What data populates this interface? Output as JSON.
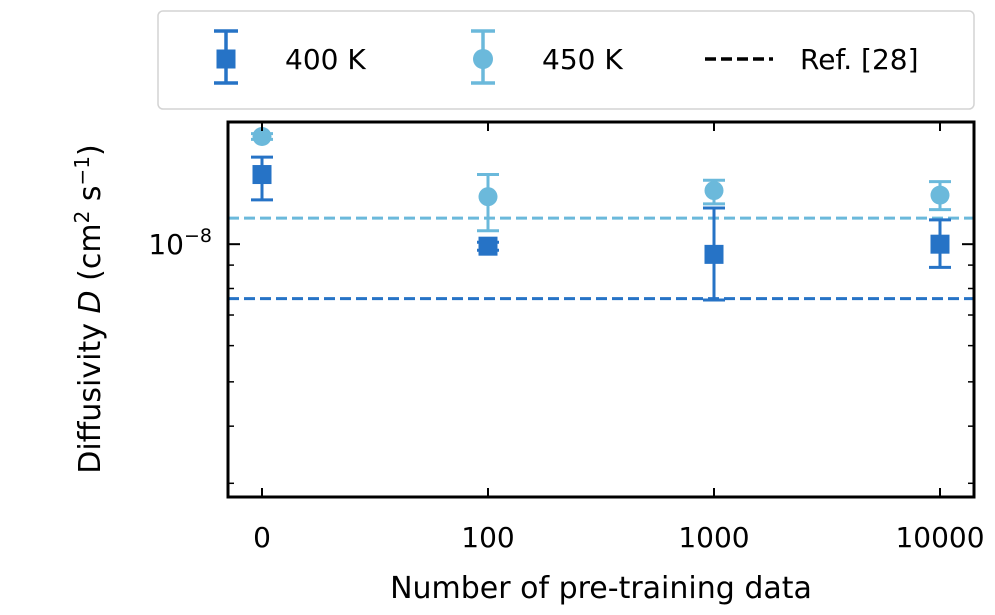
{
  "chart_data": {
    "type": "scatter",
    "title": "",
    "xlabel": "Number of pre-training data",
    "ylabel": "Diffusivity D (cm² s⁻¹)",
    "ylabel_parts": {
      "prefix": "Diffusivity ",
      "symbol": "D",
      "open": " (cm",
      "sup1": "2",
      "mid": " s",
      "sup2": "−1",
      "close": ")"
    },
    "yscale": "log",
    "ylim": [
      2.8e-09,
      1.85e-08
    ],
    "ytick_label": {
      "base": "10",
      "exponent": "−8",
      "value": 1e-08
    },
    "categories": [
      "0",
      "100",
      "1000",
      "10000"
    ],
    "series": [
      {
        "name": "400 K",
        "marker": "square",
        "color": "#2673c6",
        "values": [
          1.42e-08,
          9.9e-09,
          9.5e-09,
          1e-08
        ],
        "err_lower": [
          1.25e-08,
          9.7e-09,
          7.55e-09,
          8.9e-09
        ],
        "err_upper": [
          1.55e-08,
          1.01e-08,
          1.2e-08,
          1.13e-08
        ]
      },
      {
        "name": "450 K",
        "marker": "circle",
        "color": "#6bb9db",
        "values": [
          1.72e-08,
          1.27e-08,
          1.31e-08,
          1.28e-08
        ],
        "err_lower": [
          1.695e-08,
          1.07e-08,
          1.225e-08,
          1.19e-08
        ],
        "err_upper": [
          1.745e-08,
          1.42e-08,
          1.38e-08,
          1.37e-08
        ]
      }
    ],
    "reference_lines": [
      {
        "name": "400 K reference",
        "value": 7.6e-09,
        "color": "#2673c6"
      },
      {
        "name": "450 K reference",
        "value": 1.14e-08,
        "color": "#6bb9db"
      }
    ],
    "legend": {
      "position": "top",
      "entries": [
        {
          "label": "400 K",
          "marker": "square",
          "color": "#2673c6"
        },
        {
          "label": "450 K",
          "marker": "circle",
          "color": "#6bb9db"
        },
        {
          "label": "Ref. [28]",
          "marker": "dashed-line",
          "color": "#000000"
        }
      ]
    }
  }
}
